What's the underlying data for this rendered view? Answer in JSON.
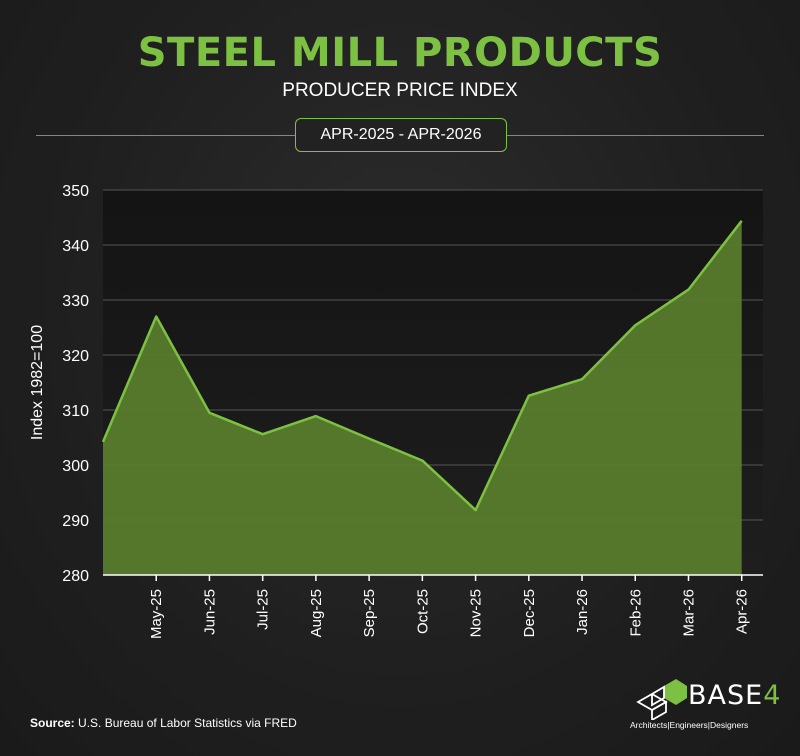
{
  "header": {
    "title": "STEEL MILL PRODUCTS",
    "subtitle": "PRODUCER PRICE INDEX",
    "date_range": "APR-2025 - APR-2026"
  },
  "footer": {
    "source_label": "Source:",
    "source_text": "U.S. Bureau of Labor Statistics via FRED"
  },
  "logo": {
    "name": "BASE",
    "suffix": "4",
    "tagline": "Architects|Engineers|Designers"
  },
  "colors": {
    "accent": "#7dc142",
    "area_fill": "#5a7f2e",
    "line": "#7dc142",
    "grid": "#555555"
  },
  "chart_data": {
    "type": "area",
    "title": "STEEL MILL PRODUCTS",
    "subtitle": "PRODUCER PRICE INDEX",
    "ylabel": "Index 1982=100",
    "xlabel": "",
    "ylim": [
      280,
      350
    ],
    "yticks": [
      280,
      290,
      300,
      310,
      320,
      330,
      340,
      350
    ],
    "grid": true,
    "x": [
      "Apr-25",
      "May-25",
      "Jun-25",
      "Jul-25",
      "Aug-25",
      "Sep-25",
      "Oct-25",
      "Nov-25",
      "Dec-25",
      "Jan-26",
      "Feb-26",
      "Mar-26",
      "Apr-26"
    ],
    "x_tick_labels": [
      "",
      "May-25",
      "Jun-25",
      "Jul-25",
      "Aug-25",
      "Sep-25",
      "Oct-25",
      "Nov-25",
      "Dec-25",
      "Jan-26",
      "Feb-26",
      "Mar-26",
      "Apr-26"
    ],
    "values": [
      304.2,
      327.0,
      309.5,
      305.6,
      308.9,
      304.8,
      300.8,
      291.8,
      312.6,
      315.6,
      325.4,
      331.9,
      344.4
    ]
  }
}
